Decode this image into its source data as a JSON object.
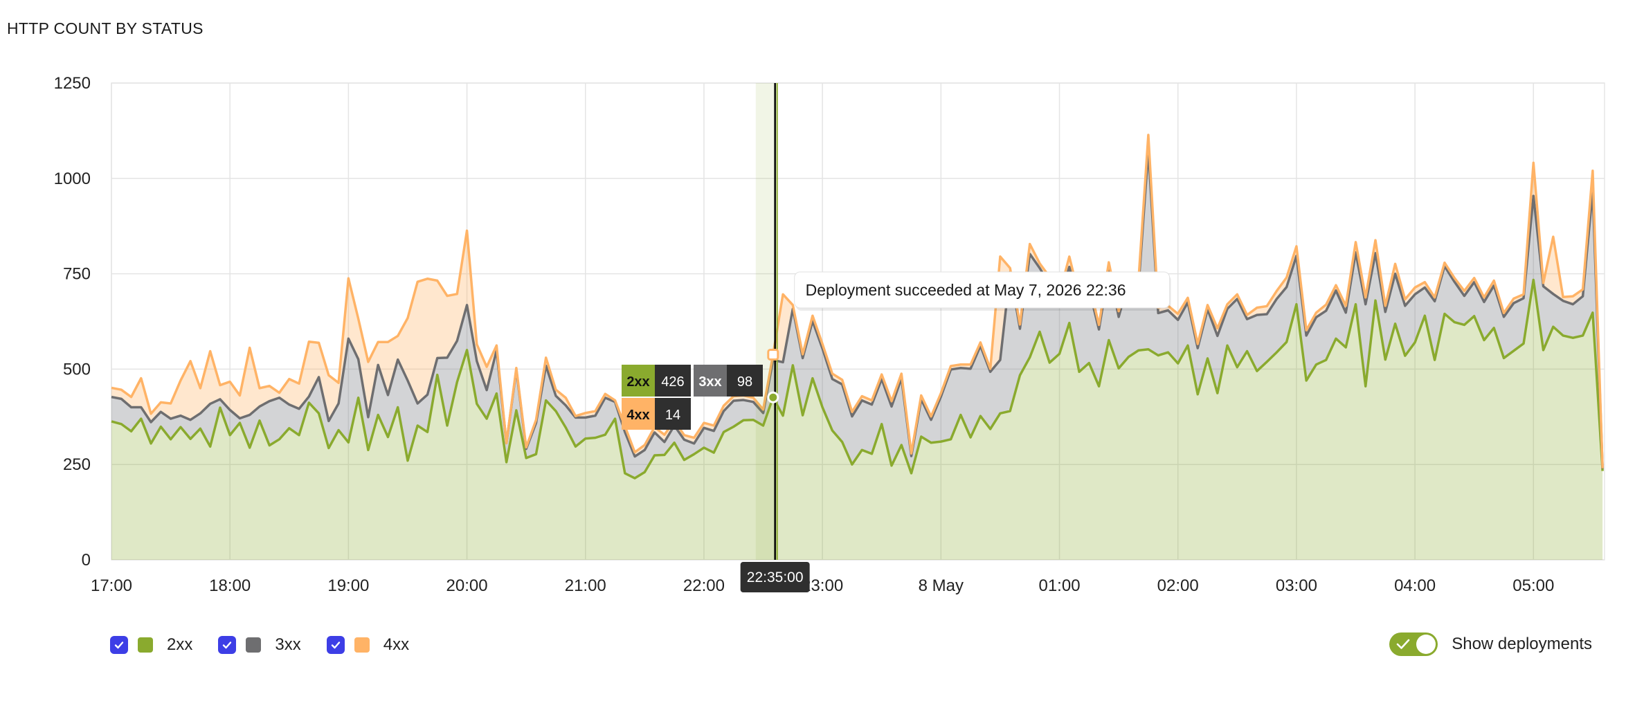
{
  "panel": {
    "title": "HTTP COUNT BY STATUS"
  },
  "chart_data": {
    "type": "area",
    "stacked": true,
    "ylim": [
      0,
      1250
    ],
    "yticks": [
      0,
      250,
      500,
      750,
      1000,
      1250
    ],
    "x_start": "17:00",
    "x_end": "05:36",
    "x_step_minutes": 5,
    "x_ticks": [
      "17:00",
      "18:00",
      "19:00",
      "20:00",
      "21:00",
      "22:00",
      "23:00",
      "8 May",
      "01:00",
      "02:00",
      "03:00",
      "04:00",
      "05:00"
    ],
    "grid": true,
    "legend_position": "bottom-left",
    "series": [
      {
        "name": "2xx",
        "color": "#8aaa2e",
        "values": [
          363,
          356,
          337,
          370,
          305,
          349,
          316,
          348,
          317,
          344,
          297,
          399,
          327,
          359,
          294,
          365,
          300,
          316,
          345,
          327,
          412,
          384,
          293,
          340,
          308,
          425,
          288,
          380,
          322,
          400,
          260,
          352,
          335,
          485,
          352,
          466,
          550,
          409,
          370,
          436,
          256,
          392,
          267,
          277,
          418,
          390,
          347,
          297,
          318,
          320,
          328,
          370,
          227,
          214,
          230,
          274,
          275,
          307,
          262,
          277,
          294,
          281,
          335,
          349,
          366,
          367,
          352,
          426,
          378,
          510,
          379,
          476,
          400,
          339,
          309,
          250,
          288,
          278,
          356,
          247,
          301,
          227,
          323,
          307,
          310,
          316,
          380,
          321,
          377,
          343,
          384,
          390,
          484,
          531,
          598,
          517,
          540,
          621,
          493,
          516,
          455,
          576,
          502,
          532,
          549,
          552,
          536,
          544,
          515,
          562,
          434,
          528,
          437,
          562,
          505,
          547,
          495,
          519,
          544,
          571,
          670,
          470,
          512,
          524,
          580,
          557,
          670,
          455,
          680,
          525,
          619,
          535,
          570,
          640,
          524,
          645,
          623,
          616,
          639,
          576,
          608,
          529,
          548,
          567,
          734,
          550,
          611,
          588,
          582,
          588,
          648,
          233
        ]
      },
      {
        "name": "3xx",
        "color": "#6e6e70",
        "values": [
          64,
          66,
          63,
          30,
          56,
          39,
          54,
          30,
          50,
          40,
          112,
          22,
          66,
          12,
          86,
          37,
          116,
          109,
          62,
          69,
          16,
          95,
          71,
          70,
          272,
          101,
          86,
          131,
          110,
          125,
          210,
          58,
          98,
          44,
          178,
          108,
          118,
          112,
          75,
          113,
          50,
          107,
          24,
          82,
          91,
          40,
          58,
          76,
          55,
          58,
          97,
          44,
          108,
          57,
          58,
          60,
          34,
          45,
          53,
          28,
          52,
          57,
          55,
          68,
          53,
          47,
          33,
          98,
          140,
          148,
          150,
          150,
          154,
          135,
          151,
          126,
          130,
          129,
          118,
          155,
          175,
          45,
          98,
          60,
          118,
          183,
          123,
          180,
          184,
          150,
          140,
          364,
          122,
          271,
          167,
          206,
          140,
          147,
          184,
          193,
          149,
          186,
          135,
          197,
          164,
          522,
          111,
          110,
          114,
          113,
          121,
          129,
          150,
          96,
          179,
          84,
          147,
          125,
          140,
          144,
          127,
          118,
          124,
          129,
          126,
          91,
          136,
          215,
          124,
          125,
          131,
          131,
          126,
          74,
          154,
          125,
          106,
          76,
          89,
          100,
          111,
          108,
          125,
          119,
          220,
          167,
          86,
          91,
          88,
          103,
          320,
          6
        ]
      },
      {
        "name": "4xx",
        "color": "#ffb366",
        "values": [
          24,
          24,
          27,
          76,
          22,
          25,
          40,
          92,
          154,
          66,
          138,
          37,
          74,
          60,
          176,
          48,
          40,
          13,
          67,
          66,
          144,
          90,
          120,
          54,
          158,
          106,
          145,
          60,
          139,
          62,
          164,
          319,
          304,
          203,
          162,
          123,
          195,
          44,
          61,
          13,
          0,
          4,
          4,
          8,
          21,
          16,
          20,
          4,
          12,
          12,
          10,
          4,
          15,
          11,
          13,
          14,
          19,
          13,
          12,
          15,
          13,
          14,
          14,
          12,
          12,
          11,
          9,
          14,
          178,
          10,
          10,
          14,
          12,
          14,
          12,
          12,
          11,
          11,
          12,
          14,
          12,
          7,
          10,
          9,
          9,
          9,
          9,
          11,
          9,
          8,
          271,
          11,
          11,
          26,
          12,
          19,
          16,
          27,
          13,
          16,
          12,
          18,
          15,
          19,
          18,
          40,
          14,
          12,
          16,
          12,
          11,
          11,
          20,
          12,
          12,
          11,
          19,
          21,
          21,
          25,
          25,
          14,
          12,
          16,
          14,
          18,
          27,
          18,
          34,
          16,
          26,
          17,
          18,
          14,
          10,
          9,
          10,
          13,
          11,
          12,
          13,
          10,
          12,
          10,
          87,
          9,
          150,
          10,
          21,
          18,
          52,
          1
        ]
      }
    ],
    "hover": {
      "time": "22:35:00",
      "values": [
        {
          "label": "2xx",
          "value": "426"
        },
        {
          "label": "3xx",
          "value": "98"
        },
        {
          "label": "4xx",
          "value": "14"
        }
      ]
    },
    "deployment": {
      "time": "22:36",
      "label": "Deployment succeeded at May 7, 2026 22:36"
    }
  },
  "legend": {
    "items": [
      {
        "label": "2xx",
        "color": "#8aaa2e",
        "checked": true
      },
      {
        "label": "3xx",
        "color": "#6e6e70",
        "checked": true
      },
      {
        "label": "4xx",
        "color": "#ffb366",
        "checked": true
      }
    ]
  },
  "toggle": {
    "label": "Show deployments",
    "on": true
  }
}
